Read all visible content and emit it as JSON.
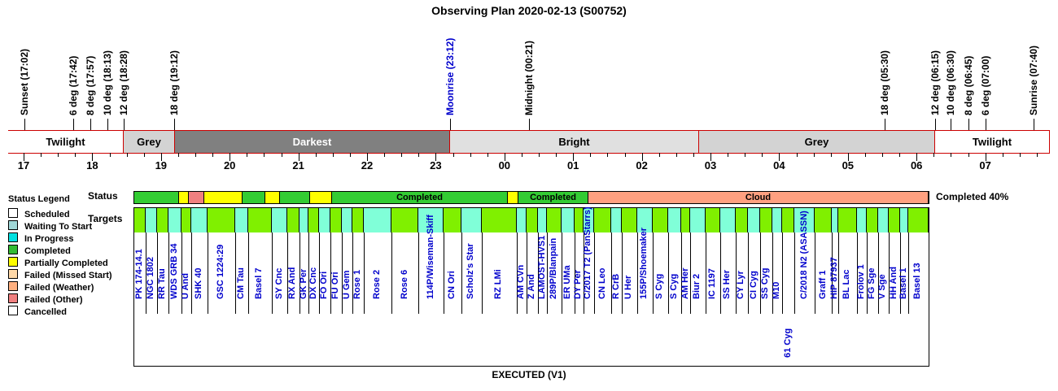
{
  "title": "Observing Plan 2020-02-13 (S00752)",
  "footer": "EXECUTED (V1)",
  "completion": "Completed 40%",
  "events": [
    {
      "label": "Sunset (17:02)",
      "color": "#000000"
    },
    {
      "label": "6 deg (17:42)",
      "color": "#000000"
    },
    {
      "label": "8 deg (17:57)",
      "color": "#000000"
    },
    {
      "label": "10 deg (18:13)",
      "color": "#000000"
    },
    {
      "label": "12 deg (18:28)",
      "color": "#000000"
    },
    {
      "label": "18 deg (19:12)",
      "color": "#000000"
    },
    {
      "label": "Moonrise (23:12)",
      "color": "#0000cc"
    },
    {
      "label": "Midnight (00:21)",
      "color": "#000000"
    },
    {
      "label": "18 deg (05:30)",
      "color": "#000000"
    },
    {
      "label": "12 deg (06:15)",
      "color": "#000000"
    },
    {
      "label": "10 deg (06:30)",
      "color": "#000000"
    },
    {
      "label": "8 deg (06:45)",
      "color": "#000000"
    },
    {
      "label": "6 deg (07:00)",
      "color": "#000000"
    },
    {
      "label": "Sunrise (07:40)",
      "color": "#000000"
    }
  ],
  "bands": [
    {
      "label": "Twilight",
      "color": "#ffffff",
      "text_color": "#000000"
    },
    {
      "label": "Grey",
      "color": "#d3d3d3",
      "text_color": "#000000"
    },
    {
      "label": "Darkest",
      "color": "#808080",
      "text_color": "#ffffff"
    },
    {
      "label": "Bright",
      "color": "#e0e0e0",
      "text_color": "#000000"
    },
    {
      "label": "Grey",
      "color": "#d3d3d3",
      "text_color": "#000000"
    },
    {
      "label": "Twilight",
      "color": "#ffffff",
      "text_color": "#000000"
    }
  ],
  "hours": [
    "17",
    "18",
    "19",
    "20",
    "21",
    "22",
    "23",
    "00",
    "01",
    "02",
    "03",
    "04",
    "05",
    "06",
    "07"
  ],
  "legend": {
    "title": "Status Legend",
    "items": [
      {
        "label": "Scheduled",
        "color": "#ffffff"
      },
      {
        "label": "Waiting To Start",
        "color": "#a0d8d8"
      },
      {
        "label": "In Progress",
        "color": "#00e0e0"
      },
      {
        "label": "Completed",
        "color": "#33bb33"
      },
      {
        "label": "Partially Completed",
        "color": "#ffff00"
      },
      {
        "label": "Failed (Missed Start)",
        "color": "#ffd8a8"
      },
      {
        "label": "Failed (Weather)",
        "color": "#ffb080"
      },
      {
        "label": "Failed (Other)",
        "color": "#f08080"
      },
      {
        "label": "Cancelled",
        "color": "#ffffff"
      }
    ]
  },
  "row_labels": {
    "status": "Status",
    "targets": "Targets"
  },
  "status_segments": [
    {
      "label": "",
      "color": "#33cc33"
    },
    {
      "label": "",
      "color": "#ffff00"
    },
    {
      "label": "",
      "color": "#f08080"
    },
    {
      "label": "",
      "color": "#ffff00"
    },
    {
      "label": "",
      "color": "#33cc33"
    },
    {
      "label": "",
      "color": "#ffff00"
    },
    {
      "label": "",
      "color": "#33cc33"
    },
    {
      "label": "",
      "color": "#ffff00"
    },
    {
      "label": "Completed",
      "color": "#33cc33"
    },
    {
      "label": "",
      "color": "#ffff00"
    },
    {
      "label": "Completed",
      "color": "#33cc33"
    },
    {
      "label": "Cloud",
      "color": "#ffa080"
    }
  ],
  "targets": [
    "PK 174-14.1",
    "NGC 1802",
    "RR Tau",
    "WDS GRB 34",
    "U And",
    "SHK 40",
    "GSC 1224:29",
    "CM Tau",
    "Basel 7",
    "SY Cnc",
    "RX And",
    "GK Per",
    "DX Cnc",
    "FO Ori",
    "FU Ori",
    "U Gem",
    "Rose 1",
    "Rose 2",
    "Rose 6",
    "114P/Wiseman-Skiff",
    "CN Ori",
    "Scholz's Star",
    "RZ LMi",
    "AM CVn",
    "Z And",
    "LAMOST-HVS1",
    "289P/Blanpain",
    "ER UMa",
    "DY Per",
    "C/2017 T2 (PanStarrs)",
    "CN Leo",
    "R CrB",
    "U Her",
    "155P/Shoemaker",
    "S Cyg",
    "S Cyg",
    "AM Her",
    "Biur 2",
    "IC 1197",
    "SS Her",
    "CY Lyr",
    "CI Cyg",
    "SS Cyg",
    "M10",
    "61 Cyg",
    "C/2018 N2 (ASASSN)",
    "Graff 1",
    "HIP 87937",
    "BL Lac",
    "Frolov 1",
    "FG Sge",
    "V Sge",
    "HH And",
    "Basel 1",
    "Basel 13"
  ]
}
